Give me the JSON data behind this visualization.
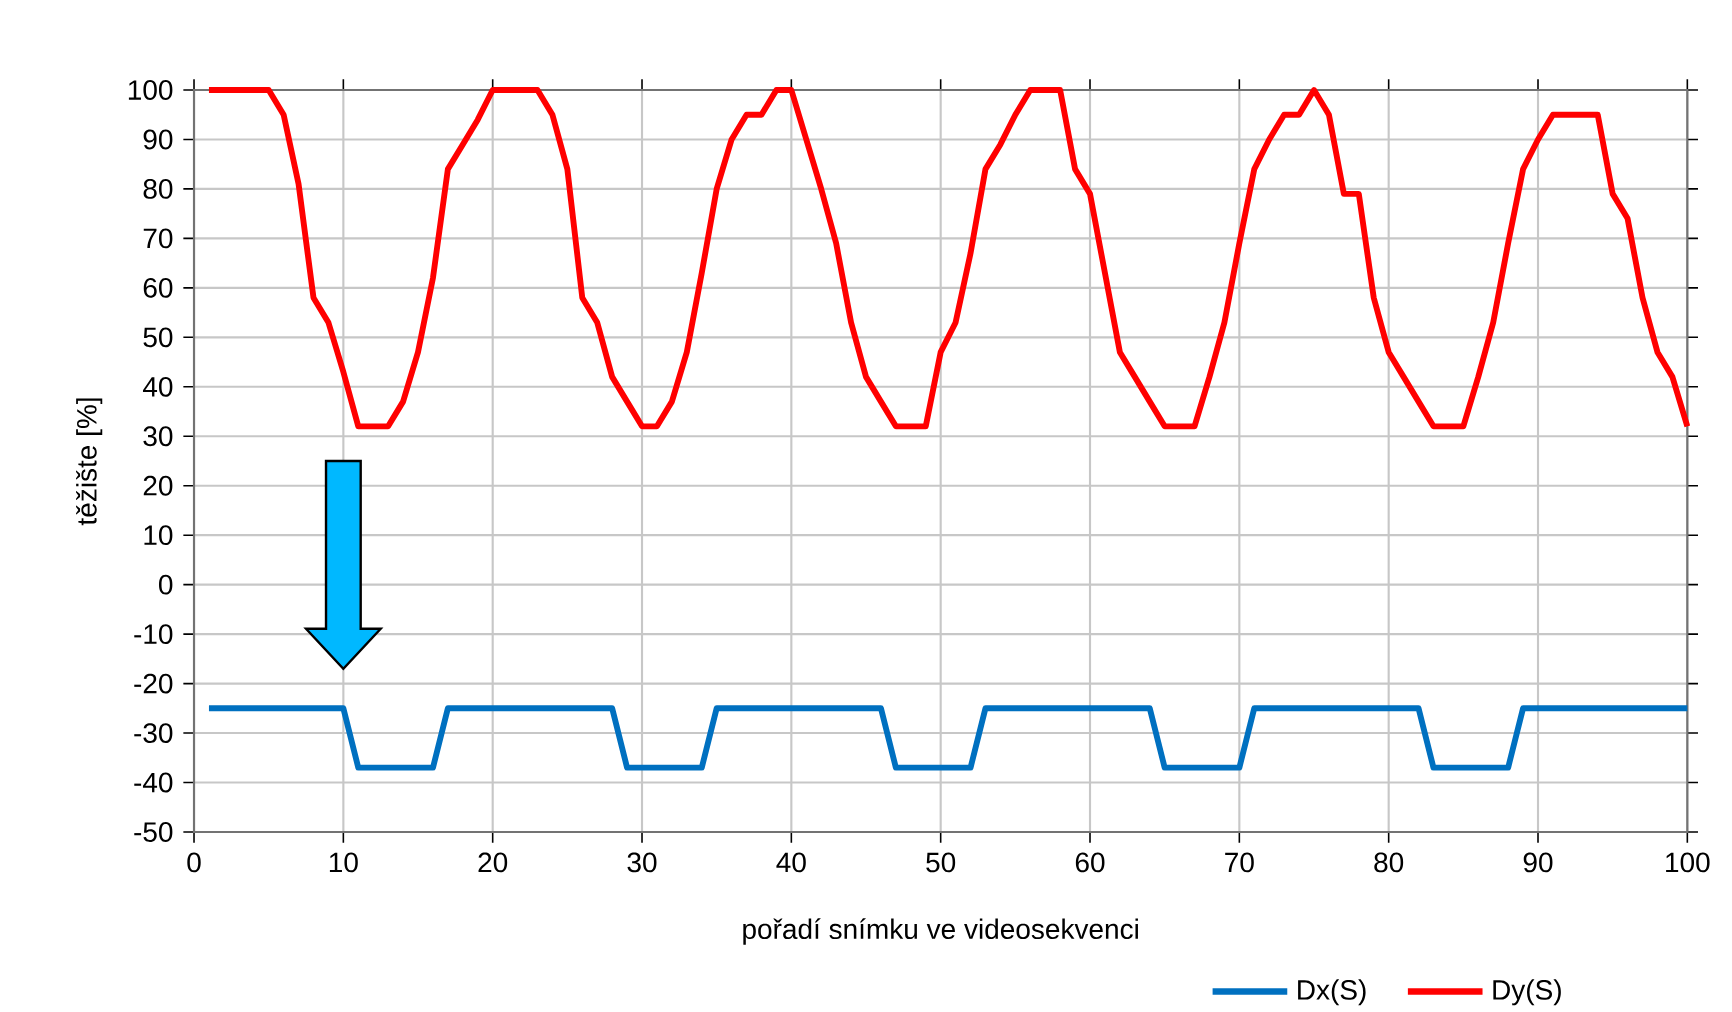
{
  "chart_data": {
    "type": "line",
    "xlabel": "pořadí snímku ve videosekvenci",
    "ylabel": "těžište  [%]",
    "x": [
      1,
      2,
      3,
      4,
      5,
      6,
      7,
      8,
      9,
      10,
      11,
      12,
      13,
      14,
      15,
      16,
      17,
      18,
      19,
      20,
      21,
      22,
      23,
      24,
      25,
      26,
      27,
      28,
      29,
      30,
      31,
      32,
      33,
      34,
      35,
      36,
      37,
      38,
      39,
      40,
      41,
      42,
      43,
      44,
      45,
      46,
      47,
      48,
      49,
      50,
      51,
      52,
      53,
      54,
      55,
      56,
      57,
      58,
      59,
      60,
      61,
      62,
      63,
      64,
      65,
      66,
      67,
      68,
      69,
      70,
      71,
      72,
      73,
      74,
      75,
      76,
      77,
      78,
      79,
      80,
      81,
      82,
      83,
      84,
      85,
      86,
      87,
      88,
      89,
      90,
      91,
      92,
      93,
      94,
      95,
      96,
      97,
      98,
      99,
      100
    ],
    "series": [
      {
        "name": "Dx(S)",
        "color": "#0070c0",
        "values": [
          -25,
          -25,
          -25,
          -25,
          -25,
          -25,
          -25,
          -25,
          -25,
          -25,
          -37,
          -37,
          -37,
          -37,
          -37,
          -37,
          -25,
          -25,
          -25,
          -25,
          -25,
          -25,
          -25,
          -25,
          -25,
          -25,
          -25,
          -25,
          -37,
          -37,
          -37,
          -37,
          -37,
          -37,
          -25,
          -25,
          -25,
          -25,
          -25,
          -25,
          -25,
          -25,
          -25,
          -25,
          -25,
          -25,
          -37,
          -37,
          -37,
          -37,
          -37,
          -37,
          -25,
          -25,
          -25,
          -25,
          -25,
          -25,
          -25,
          -25,
          -25,
          -25,
          -25,
          -25,
          -37,
          -37,
          -37,
          -37,
          -37,
          -37,
          -25,
          -25,
          -25,
          -25,
          -25,
          -25,
          -25,
          -25,
          -25,
          -25,
          -25,
          -25,
          -37,
          -37,
          -37,
          -37,
          -37,
          -37,
          -25,
          -25,
          -25,
          -25,
          -25,
          -25,
          -25,
          -25,
          -25,
          -25,
          -25,
          -25
        ]
      },
      {
        "name": "Dy(S)",
        "color": "#ff0000",
        "values": [
          100,
          100,
          100,
          100,
          100,
          95,
          81,
          58,
          53,
          43,
          32,
          32,
          32,
          37,
          47,
          62,
          84,
          89,
          94,
          100,
          100,
          100,
          100,
          95,
          84,
          58,
          53,
          42,
          37,
          32,
          32,
          37,
          47,
          63,
          80,
          90,
          95,
          95,
          100,
          100,
          90,
          80,
          69,
          53,
          42,
          37,
          32,
          32,
          32,
          47,
          53,
          67,
          84,
          89,
          95,
          100,
          100,
          100,
          84,
          79,
          63,
          47,
          42,
          37,
          32,
          32,
          32,
          42,
          53,
          69,
          84,
          90,
          95,
          95,
          100,
          95,
          79,
          79,
          58,
          47,
          42,
          37,
          32,
          32,
          32,
          42,
          53,
          69,
          84,
          90,
          95,
          95,
          95,
          95,
          79,
          74,
          58,
          47,
          42,
          32
        ]
      }
    ],
    "xlim": [
      0,
      100
    ],
    "xticks": [
      0,
      10,
      20,
      30,
      40,
      50,
      60,
      70,
      80,
      90,
      100
    ],
    "ylim": [
      -50,
      100
    ],
    "yticks": [
      -50,
      -40,
      -30,
      -20,
      -10,
      0,
      10,
      20,
      30,
      40,
      50,
      60,
      70,
      80,
      90,
      100
    ],
    "grid": true,
    "legend": "bottom",
    "marker": "none",
    "line_style": "solid"
  }
}
